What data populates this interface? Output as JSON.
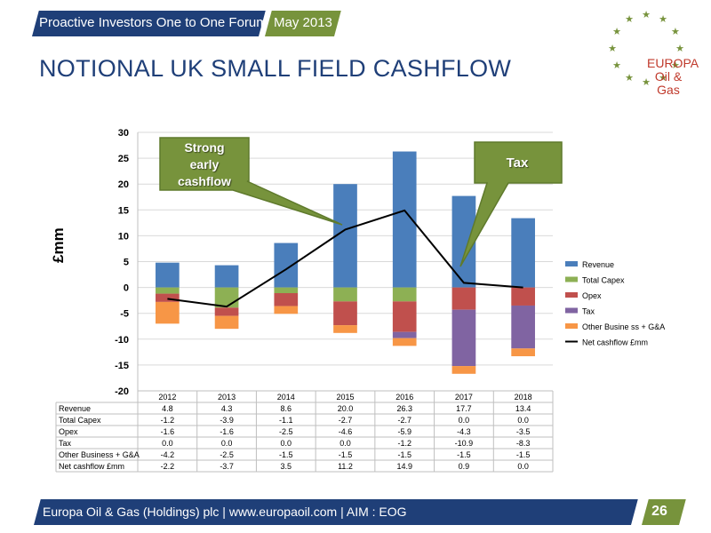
{
  "header": {
    "event": "Proactive Investors One to One Forum",
    "date": "May 2013"
  },
  "slide": {
    "title": "NOTIONAL UK SMALL FIELD CASHFLOW"
  },
  "logo": {
    "line1": "EUROPA",
    "line2": "Oil & Gas",
    "brand_color": "#c0392b",
    "star_color": "#77933c"
  },
  "callouts": {
    "left": [
      "Strong",
      "early",
      "cashflow"
    ],
    "right": "Tax"
  },
  "footer": {
    "text": "Europa Oil & Gas (Holdings) plc | www.europaoil.com | AIM : EOG",
    "page": "26"
  },
  "colors": {
    "navy": "#1f3f78",
    "green": "#77933c"
  },
  "chart_data": {
    "type": "bar",
    "stacked": true,
    "ylabel": "£mm",
    "ylim": [
      -20,
      30
    ],
    "yticks": [
      30,
      25,
      20,
      15,
      10,
      5,
      0,
      -5,
      -10,
      -15,
      -20
    ],
    "grid": true,
    "legend_position": "right",
    "categories": [
      "2012",
      "2013",
      "2014",
      "2015",
      "2016",
      "2017",
      "2018"
    ],
    "series": [
      {
        "name": "Revenue",
        "color": "#4a7ebb",
        "values": [
          4.8,
          4.3,
          8.6,
          20.0,
          26.3,
          17.7,
          13.4
        ]
      },
      {
        "name": "Total Capex",
        "color": "#8db054",
        "values": [
          -1.2,
          -3.9,
          -1.1,
          -2.7,
          -2.7,
          0.0,
          0.0
        ]
      },
      {
        "name": "Opex",
        "color": "#c0504d",
        "values": [
          -1.6,
          -1.6,
          -2.5,
          -4.6,
          -5.9,
          -4.3,
          -3.5
        ]
      },
      {
        "name": "Tax",
        "color": "#8064a2",
        "values": [
          0.0,
          0.0,
          0.0,
          0.0,
          -1.2,
          -10.9,
          -8.3
        ]
      },
      {
        "name": "Other Busine ss + G&A",
        "color": "#f79646",
        "values": [
          -4.2,
          -2.5,
          -1.5,
          -1.5,
          -1.5,
          -1.5,
          -1.5
        ]
      }
    ],
    "line": {
      "name": "Net cashflow £mm",
      "color": "#000000",
      "values": [
        -2.2,
        -3.7,
        3.5,
        11.2,
        14.9,
        0.9,
        0.0
      ]
    },
    "table": {
      "rows": [
        {
          "label": "Revenue",
          "values": [
            "4.8",
            "4.3",
            "8.6",
            "20.0",
            "26.3",
            "17.7",
            "13.4"
          ]
        },
        {
          "label": "Total Capex",
          "values": [
            "-1.2",
            "-3.9",
            "-1.1",
            "-2.7",
            "-2.7",
            "0.0",
            "0.0"
          ]
        },
        {
          "label": "Opex",
          "values": [
            "-1.6",
            "-1.6",
            "-2.5",
            "-4.6",
            "-5.9",
            "-4.3",
            "-3.5"
          ]
        },
        {
          "label": "Tax",
          "values": [
            "0.0",
            "0.0",
            "0.0",
            "0.0",
            "-1.2",
            "-10.9",
            "-8.3"
          ]
        },
        {
          "label": "Other Business + G&A",
          "values": [
            "-4.2",
            "-2.5",
            "-1.5",
            "-1.5",
            "-1.5",
            "-1.5",
            "-1.5"
          ]
        },
        {
          "label": "Net cashflow £mm",
          "values": [
            "-2.2",
            "-3.7",
            "3.5",
            "11.2",
            "14.9",
            "0.9",
            "0.0"
          ]
        }
      ]
    }
  }
}
